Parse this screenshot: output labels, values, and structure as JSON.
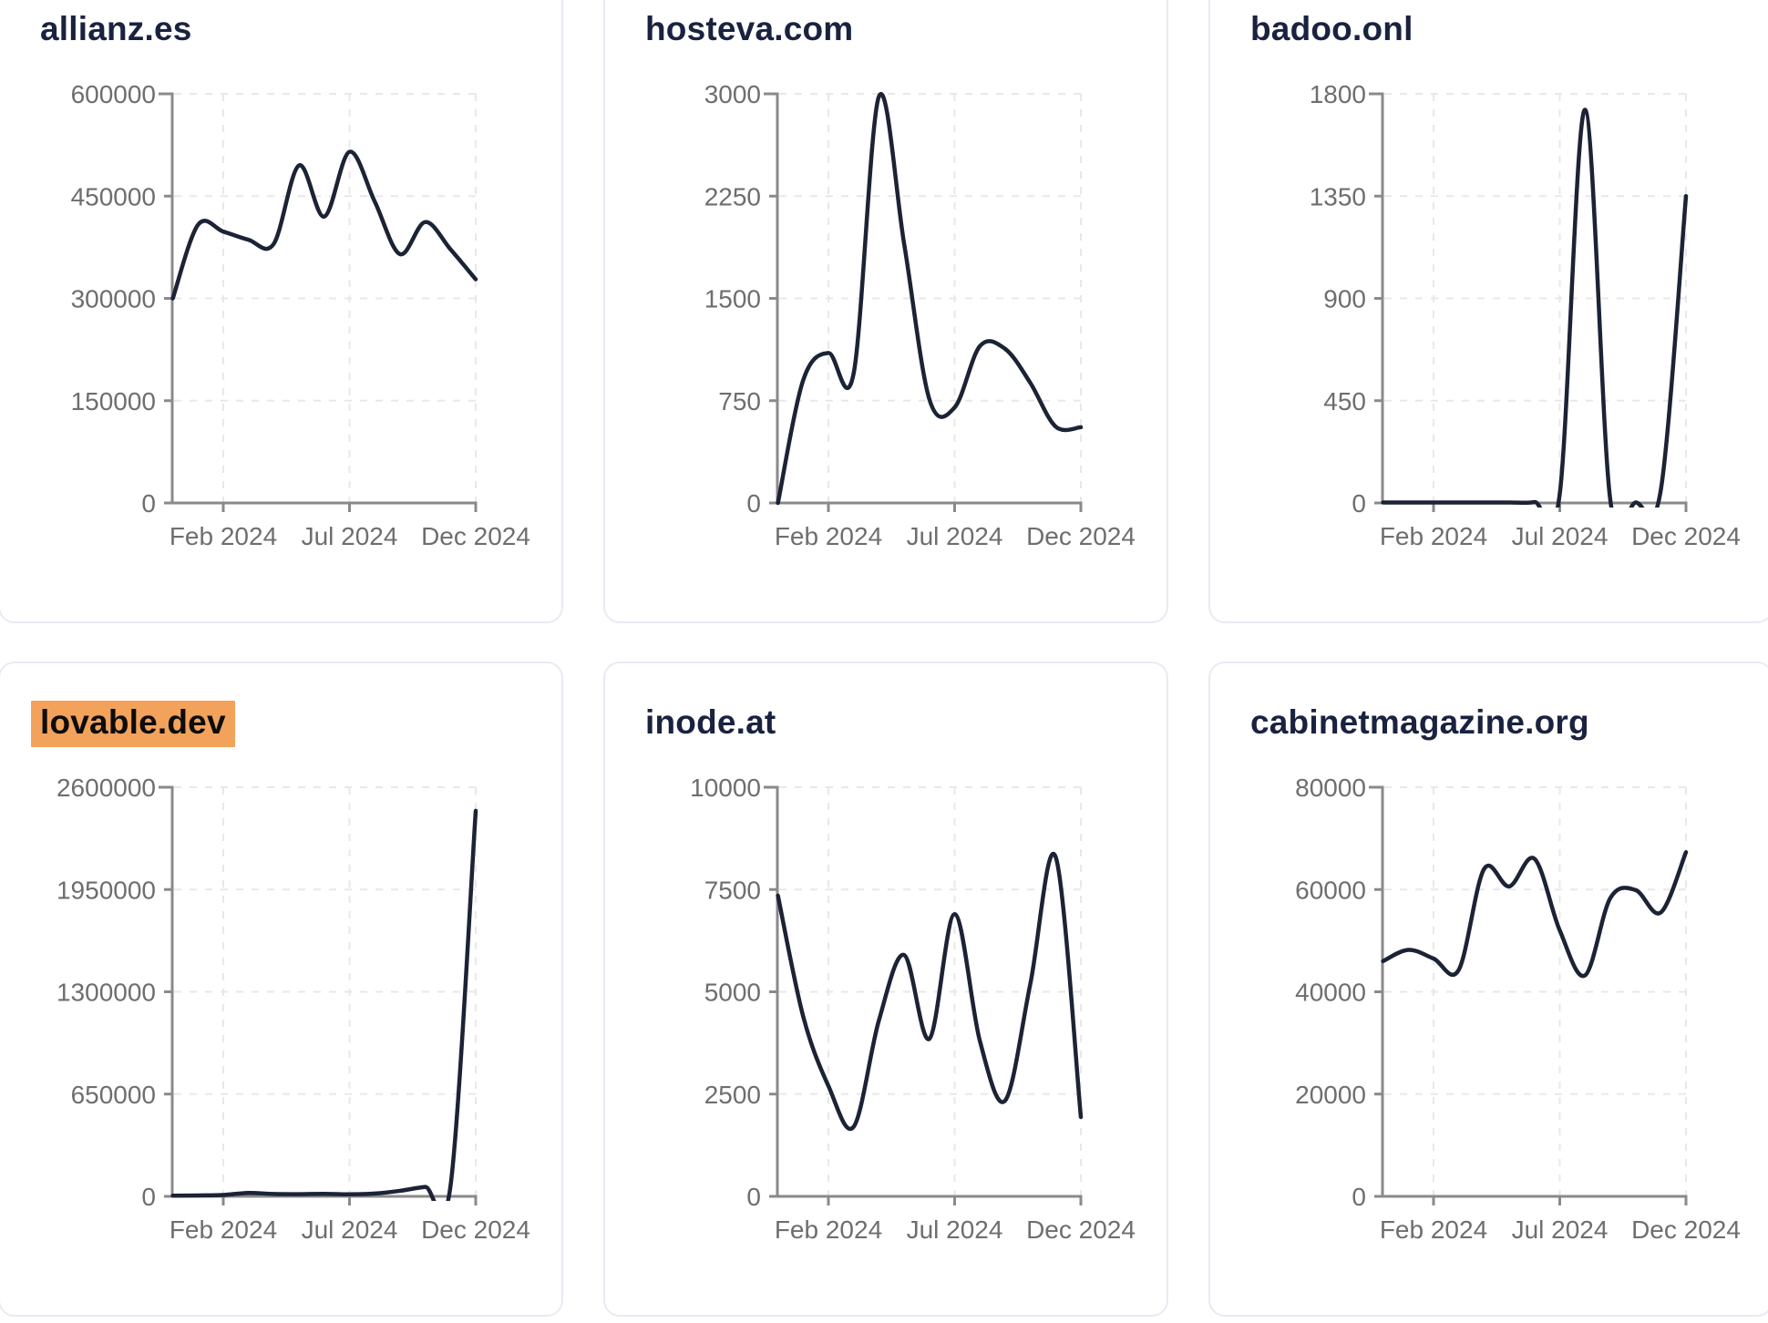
{
  "page": {
    "background": "#ffffff",
    "card_border": "#e7ebf2",
    "title_color": "#1a2240",
    "axis_color": "#8a8a8a",
    "tick_label_color": "#6e6e6e",
    "gridline_color": "#e8e8e8",
    "line_color": "#1b2335",
    "highlight_color": "#f3a25b"
  },
  "chart_data": [
    {
      "type": "line",
      "title": "allianz.es",
      "title_highlight": false,
      "x": [
        "Dec 2023",
        "Jan 2024",
        "Feb 2024",
        "Mar 2024",
        "Apr 2024",
        "May 2024",
        "Jun 2024",
        "Jul 2024",
        "Aug 2024",
        "Sep 2024",
        "Oct 2024",
        "Nov 2024",
        "Dec 2024"
      ],
      "values": [
        300000,
        408000,
        398000,
        386000,
        380000,
        495000,
        420000,
        515000,
        442000,
        365000,
        412000,
        372000,
        328000
      ],
      "ylim": [
        0,
        600000
      ],
      "yticks": [
        0,
        150000,
        300000,
        450000,
        600000
      ],
      "xticks": [
        {
          "i": 2,
          "label": "Feb 2024"
        },
        {
          "i": 7,
          "label": "Jul 2024"
        },
        {
          "i": 12,
          "label": "Dec 2024"
        }
      ],
      "grid": "dashed",
      "legend": "none"
    },
    {
      "type": "line",
      "title": "hosteva.com",
      "title_highlight": false,
      "x": [
        "Dec 2023",
        "Jan 2024",
        "Feb 2024",
        "Mar 2024",
        "Apr 2024",
        "May 2024",
        "Jun 2024",
        "Jul 2024",
        "Aug 2024",
        "Sep 2024",
        "Oct 2024",
        "Nov 2024",
        "Dec 2024"
      ],
      "values": [
        0,
        900,
        1100,
        950,
        2980,
        1900,
        760,
        700,
        1150,
        1130,
        880,
        560,
        555
      ],
      "ylim": [
        0,
        3000
      ],
      "yticks": [
        0,
        750,
        1500,
        2250,
        3000
      ],
      "xticks": [
        {
          "i": 2,
          "label": "Feb 2024"
        },
        {
          "i": 7,
          "label": "Jul 2024"
        },
        {
          "i": 12,
          "label": "Dec 2024"
        }
      ],
      "grid": "dashed",
      "legend": "none"
    },
    {
      "type": "line",
      "title": "badoo.onl",
      "title_highlight": false,
      "x": [
        "Dec 2023",
        "Jan 2024",
        "Feb 2024",
        "Mar 2024",
        "Apr 2024",
        "May 2024",
        "Jun 2024",
        "Jul 2024",
        "Aug 2024",
        "Sep 2024",
        "Oct 2024",
        "Nov 2024",
        "Dec 2024"
      ],
      "values": [
        2,
        2,
        2,
        2,
        2,
        2,
        4,
        40,
        1730,
        15,
        2,
        55,
        1350
      ],
      "ylim": [
        0,
        1800
      ],
      "yticks": [
        0,
        450,
        900,
        1350,
        1800
      ],
      "xticks": [
        {
          "i": 2,
          "label": "Feb 2024"
        },
        {
          "i": 7,
          "label": "Jul 2024"
        },
        {
          "i": 12,
          "label": "Dec 2024"
        }
      ],
      "grid": "dashed",
      "legend": "none"
    },
    {
      "type": "line",
      "title": "lovable.dev",
      "title_highlight": true,
      "x": [
        "Dec 2023",
        "Jan 2024",
        "Feb 2024",
        "Mar 2024",
        "Apr 2024",
        "May 2024",
        "Jun 2024",
        "Jul 2024",
        "Aug 2024",
        "Sep 2024",
        "Oct 2024",
        "Nov 2024",
        "Dec 2024"
      ],
      "values": [
        4000,
        6000,
        9000,
        22000,
        15000,
        14000,
        16000,
        13000,
        18000,
        35000,
        60000,
        65000,
        2450000
      ],
      "ylim": [
        0,
        2600000
      ],
      "yticks": [
        0,
        650000,
        1300000,
        1950000,
        2600000
      ],
      "xticks": [
        {
          "i": 2,
          "label": "Feb 2024"
        },
        {
          "i": 7,
          "label": "Jul 2024"
        },
        {
          "i": 12,
          "label": "Dec 2024"
        }
      ],
      "grid": "dashed",
      "legend": "none"
    },
    {
      "type": "line",
      "title": "inode.at",
      "title_highlight": false,
      "x": [
        "Dec 2023",
        "Jan 2024",
        "Feb 2024",
        "Mar 2024",
        "Apr 2024",
        "May 2024",
        "Jun 2024",
        "Jul 2024",
        "Aug 2024",
        "Sep 2024",
        "Oct 2024",
        "Nov 2024",
        "Dec 2024"
      ],
      "values": [
        7350,
        4400,
        2700,
        1700,
        4300,
        5900,
        3850,
        6900,
        3800,
        2340,
        5200,
        8300,
        1940
      ],
      "ylim": [
        0,
        10000
      ],
      "yticks": [
        0,
        2500,
        5000,
        7500,
        10000
      ],
      "xticks": [
        {
          "i": 2,
          "label": "Feb 2024"
        },
        {
          "i": 7,
          "label": "Jul 2024"
        },
        {
          "i": 12,
          "label": "Dec 2024"
        }
      ],
      "grid": "dashed",
      "legend": "none"
    },
    {
      "type": "line",
      "title": "cabinetmagazine.org",
      "title_highlight": false,
      "x": [
        "Dec 2023",
        "Jan 2024",
        "Feb 2024",
        "Mar 2024",
        "Apr 2024",
        "May 2024",
        "Jun 2024",
        "Jul 2024",
        "Aug 2024",
        "Sep 2024",
        "Oct 2024",
        "Nov 2024",
        "Dec 2024"
      ],
      "values": [
        46000,
        48200,
        46500,
        44300,
        64000,
        60600,
        66000,
        52000,
        43200,
        58300,
        59900,
        55500,
        67300
      ],
      "ylim": [
        0,
        80000
      ],
      "yticks": [
        0,
        20000,
        40000,
        60000,
        80000
      ],
      "xticks": [
        {
          "i": 2,
          "label": "Feb 2024"
        },
        {
          "i": 7,
          "label": "Jul 2024"
        },
        {
          "i": 12,
          "label": "Dec 2024"
        }
      ],
      "grid": "dashed",
      "legend": "none"
    }
  ]
}
